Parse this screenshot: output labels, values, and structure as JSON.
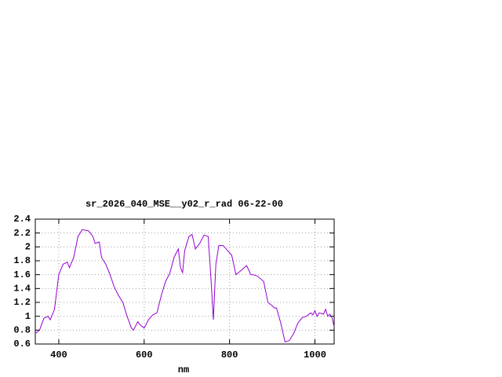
{
  "chart_data": {
    "type": "line",
    "title": "sr_2026_040_MSE__y02_r_rad 06-22-00",
    "x_label": "nm",
    "xlim": [
      345,
      1045
    ],
    "xticks": [
      400,
      600,
      800,
      1000
    ],
    "ylim": [
      0.6,
      2.4
    ],
    "yticks": [
      0.6,
      0.8,
      1,
      1.2,
      1.4,
      1.6,
      1.8,
      2,
      2.2,
      2.4
    ],
    "grid": true,
    "x": [
      345,
      355,
      365,
      375,
      380,
      390,
      400,
      410,
      420,
      425,
      435,
      445,
      455,
      470,
      480,
      485,
      495,
      500,
      510,
      520,
      530,
      540,
      550,
      560,
      570,
      575,
      585,
      590,
      600,
      610,
      620,
      630,
      640,
      650,
      660,
      670,
      680,
      685,
      690,
      695,
      705,
      712,
      720,
      730,
      740,
      750,
      757,
      762,
      768,
      775,
      785,
      795,
      805,
      815,
      825,
      840,
      850,
      855,
      865,
      880,
      890,
      900,
      905,
      910,
      920,
      930,
      940,
      950,
      960,
      970,
      980,
      990,
      995,
      1000,
      1005,
      1010,
      1020,
      1025,
      1030,
      1035,
      1040,
      1045
    ],
    "series": [
      {
        "color": "#9400d3",
        "values": [
          0.75,
          0.8,
          0.97,
          1.0,
          0.95,
          1.1,
          1.6,
          1.75,
          1.78,
          1.7,
          1.85,
          2.15,
          2.25,
          2.23,
          2.15,
          2.05,
          2.07,
          1.85,
          1.75,
          1.6,
          1.42,
          1.3,
          1.2,
          1.0,
          0.83,
          0.8,
          0.92,
          0.88,
          0.83,
          0.95,
          1.02,
          1.05,
          1.3,
          1.5,
          1.62,
          1.85,
          1.97,
          1.7,
          1.63,
          1.95,
          2.15,
          2.18,
          1.97,
          2.05,
          2.17,
          2.15,
          1.5,
          0.95,
          1.75,
          2.02,
          2.02,
          1.95,
          1.88,
          1.6,
          1.65,
          1.73,
          1.6,
          1.6,
          1.58,
          1.5,
          1.2,
          1.15,
          1.12,
          1.12,
          0.9,
          0.63,
          0.65,
          0.75,
          0.9,
          0.98,
          1.0,
          1.05,
          1.02,
          1.08,
          1.0,
          1.05,
          1.03,
          1.1,
          1.0,
          1.03,
          0.98,
          0.85
        ]
      }
    ]
  }
}
